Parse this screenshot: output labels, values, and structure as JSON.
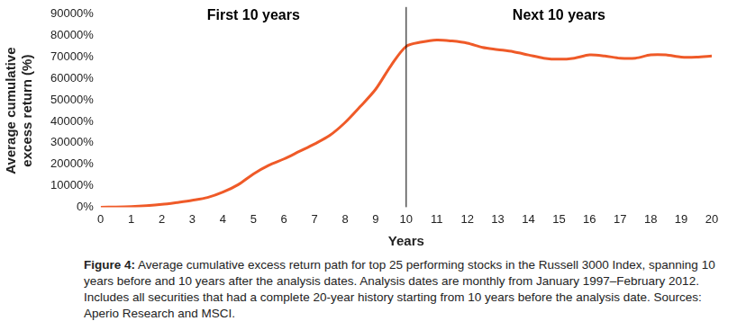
{
  "chart_data": {
    "type": "line",
    "x_label": "Years",
    "y_label": [
      "Average cumulative",
      "excess return (%)"
    ],
    "annotations": [
      "First 10 years",
      "Next 10 years"
    ],
    "reference_line": {
      "x": 10
    },
    "caption_label": "Figure 4:",
    "caption": "Average cumulative excess return path for top 25 performing stocks in the Russell 3000 Index, spanning 10 years before and 10 years after the analysis dates. Analysis dates are monthly from January 1997–February 2012. Includes all securities that had a complete 20-year history starting from 10 years before the analysis date. Sources: Aperio Research and MSCI.",
    "x": [
      0,
      0.5,
      1,
      1.5,
      2,
      2.5,
      3,
      3.5,
      4,
      4.5,
      5,
      5.5,
      6,
      6.5,
      7,
      7.5,
      8,
      8.5,
      9,
      9.5,
      10,
      10.5,
      11,
      11.5,
      12,
      12.5,
      13,
      13.5,
      14,
      14.5,
      15,
      15.5,
      16,
      16.5,
      17,
      17.5,
      18,
      18.5,
      19,
      19.5,
      20
    ],
    "values": [
      0,
      100,
      300,
      700,
      1300,
      2200,
      3200,
      4500,
      7000,
      10500,
      15500,
      19500,
      22500,
      26000,
      29500,
      33500,
      39500,
      47000,
      55000,
      66000,
      75000,
      77000,
      78000,
      77500,
      76500,
      74500,
      73500,
      72500,
      71000,
      69500,
      69000,
      69500,
      71000,
      70500,
      69500,
      69500,
      71000,
      71000,
      70000,
      70000,
      70500
    ],
    "color": "#ef5a28",
    "xlim": [
      0,
      20
    ],
    "xticks": [
      0,
      1,
      2,
      3,
      4,
      5,
      6,
      7,
      8,
      9,
      10,
      11,
      12,
      13,
      14,
      15,
      16,
      17,
      18,
      19,
      20
    ],
    "ylim": [
      0,
      90000
    ],
    "yticks": [
      {
        "value": 0,
        "label": "0%"
      },
      {
        "value": 10000,
        "label": "10000%"
      },
      {
        "value": 20000,
        "label": "20000%"
      },
      {
        "value": 30000,
        "label": "30000%"
      },
      {
        "value": 40000,
        "label": "40000%"
      },
      {
        "value": 50000,
        "label": "50000%"
      },
      {
        "value": 60000,
        "label": "60000%"
      },
      {
        "value": 70000,
        "label": "70000%"
      },
      {
        "value": 80000,
        "label": "80000%"
      },
      {
        "value": 90000,
        "label": "90000%"
      }
    ],
    "grid": false
  }
}
